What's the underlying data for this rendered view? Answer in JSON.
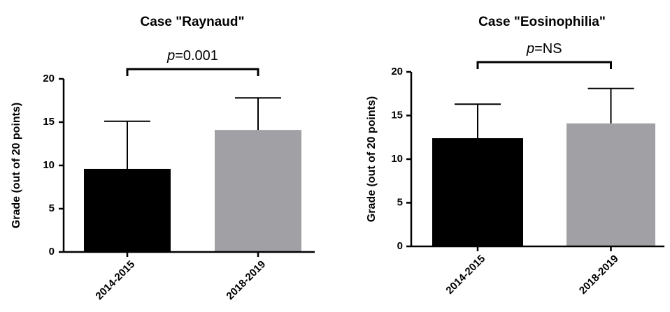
{
  "chart_data": [
    {
      "type": "bar",
      "title": "Case \"Raynaud\"",
      "ylabel": "Grade (out of 20 points)",
      "ylim": [
        0,
        20
      ],
      "yticks": [
        0,
        5,
        10,
        15,
        20
      ],
      "categories": [
        "2014-2015",
        "2018-2019"
      ],
      "values": [
        9.6,
        14.1
      ],
      "error_upper": [
        15.1,
        17.8
      ],
      "colors": [
        "#000000",
        "#a1a0a5"
      ],
      "significance": {
        "p_label": "p",
        "value_label": "=0.001"
      }
    },
    {
      "type": "bar",
      "title": "Case \"Eosinophilia\"",
      "ylabel": "Grade (out of 20 points)",
      "ylim": [
        0,
        20
      ],
      "yticks": [
        0,
        5,
        10,
        15,
        20
      ],
      "categories": [
        "2014-2015",
        "2018-2019"
      ],
      "values": [
        12.4,
        14.1
      ],
      "error_upper": [
        16.3,
        18.1
      ],
      "colors": [
        "#000000",
        "#a1a0a5"
      ],
      "significance": {
        "p_label": "p",
        "value_label": "=NS"
      }
    }
  ]
}
